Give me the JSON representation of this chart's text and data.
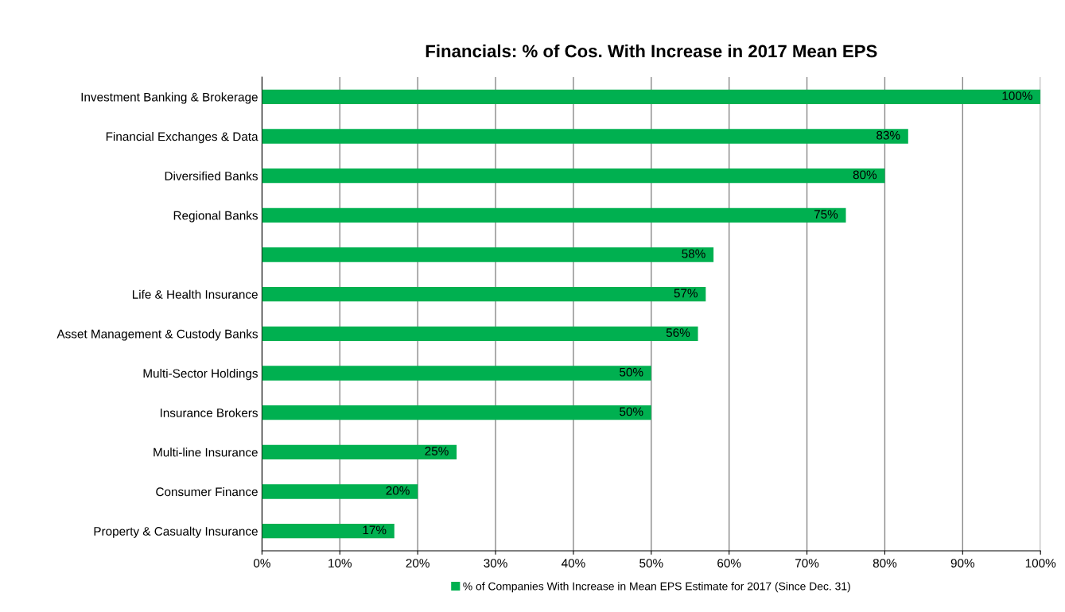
{
  "chart_data": {
    "type": "bar",
    "orientation": "horizontal",
    "title": "Financials: % of Cos. With Increase in 2017 Mean EPS",
    "categories": [
      "Investment Banking & Brokerage",
      "Financial Exchanges & Data",
      "Diversified Banks",
      "Regional Banks",
      null,
      "Life & Health Insurance",
      "Asset Management & Custody Banks",
      "Multi-Sector Holdings",
      "Insurance Brokers",
      "Multi-line Insurance",
      "Consumer Finance",
      "Property & Casualty Insurance"
    ],
    "series": [
      {
        "name": "% of Companies With Increase in Mean EPS Estimate for 2017 (Since Dec. 31)",
        "color": "#00b050",
        "values": [
          100,
          83,
          80,
          75,
          58,
          57,
          56,
          50,
          50,
          25,
          20,
          17
        ],
        "value_labels": [
          "100%",
          "83%",
          "80%",
          "75%",
          "58%",
          "57%",
          "56%",
          "50%",
          "50%",
          "25%",
          "20%",
          "17%"
        ]
      }
    ],
    "xlim": [
      0,
      100
    ],
    "xticks": [
      {
        "value": 0,
        "label": "0%"
      },
      {
        "value": 10,
        "label": "10%"
      },
      {
        "value": 20,
        "label": "20%"
      },
      {
        "value": 30,
        "label": "30%"
      },
      {
        "value": 40,
        "label": "40%"
      },
      {
        "value": 50,
        "label": "50%"
      },
      {
        "value": 60,
        "label": "60%"
      },
      {
        "value": 70,
        "label": "70%"
      },
      {
        "value": 80,
        "label": "80%"
      },
      {
        "value": 90,
        "label": "90%"
      },
      {
        "value": 100,
        "label": "100%"
      }
    ],
    "grid": "x",
    "legend": "bottom"
  }
}
